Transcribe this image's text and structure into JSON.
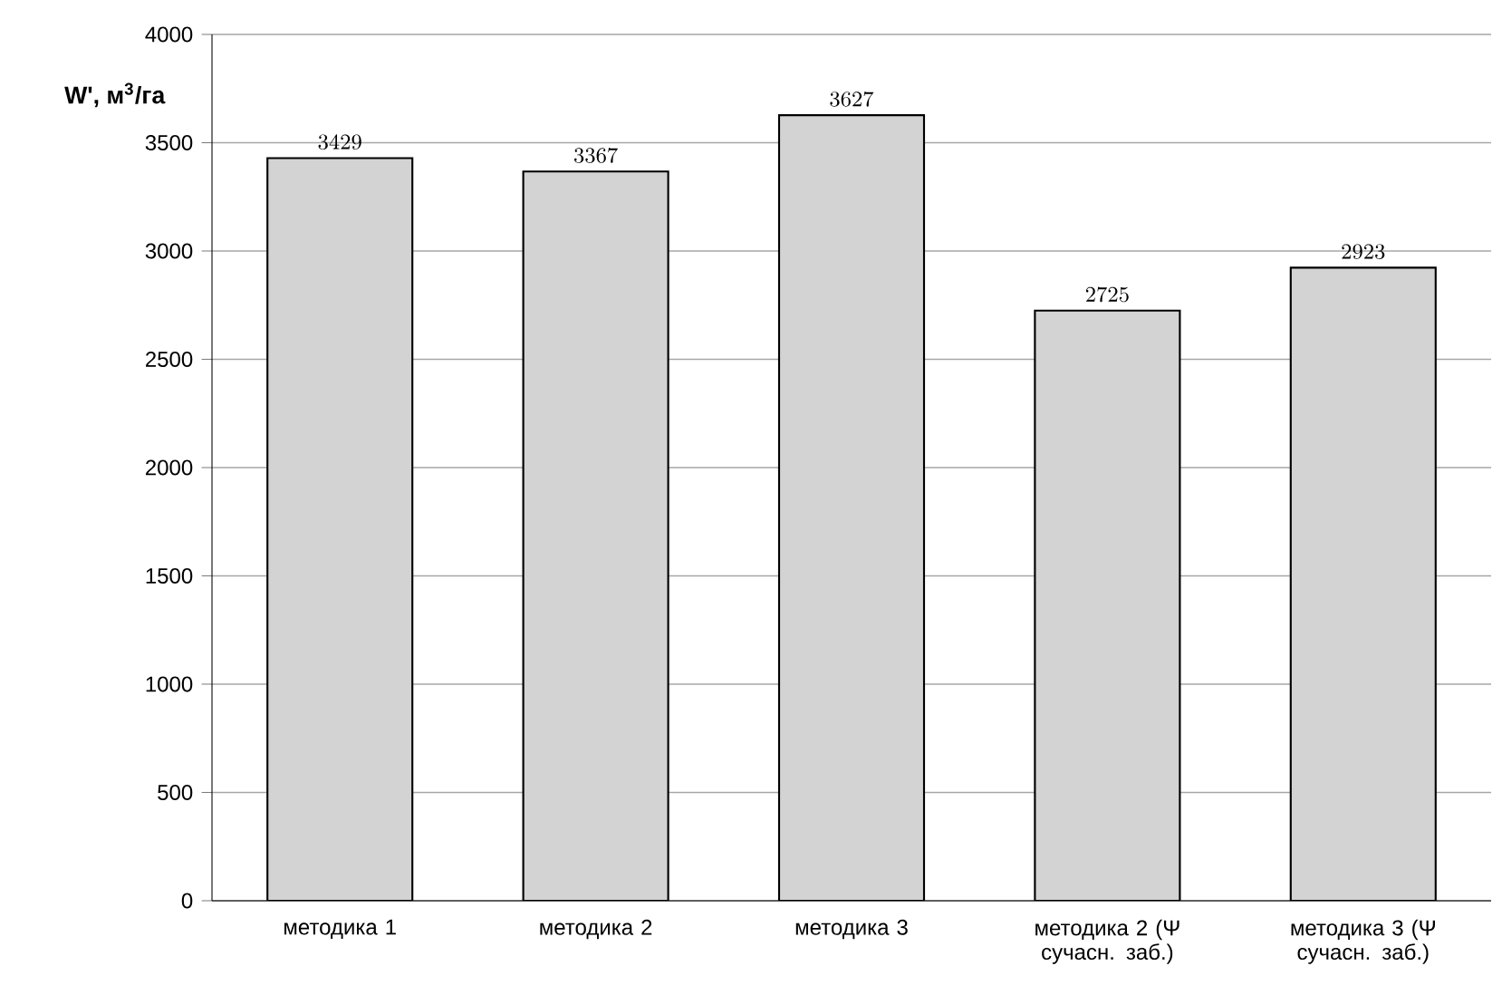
{
  "chart_data": {
    "type": "bar",
    "ylabel": "W', м$^{3}$/га",
    "categories": [
      "методика 1",
      "методика 2",
      "методика 3",
      "методика 2 (Ψ сучасн. заб.)",
      "методика 3 (Ψ сучасн. заб.)"
    ],
    "values": [
      3429,
      3367,
      3627,
      2725,
      2923
    ],
    "color": "#d3d3d3",
    "data_labels": true,
    "ylim": [
      0,
      4000
    ],
    "yticks": [
      0,
      500,
      1000,
      1500,
      2000,
      2500,
      3000,
      3500,
      4000
    ],
    "grid": "y"
  }
}
